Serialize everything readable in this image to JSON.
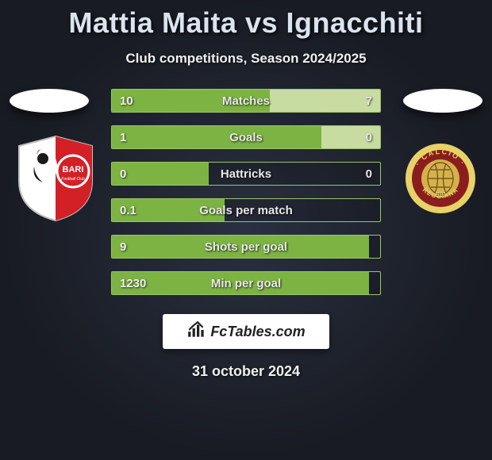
{
  "title": "Mattia Maita vs Ignacchiti",
  "subtitle": "Club competitions, Season 2024/2025",
  "date": "31 october 2024",
  "brand": "FcTables.com",
  "colors": {
    "fill_left": "#7db342",
    "fill_right": "#c8dba0",
    "border": "#9ac66a",
    "title_text": "#d9e4ef",
    "bg_inner": "#2a3040",
    "bg_outer": "#181b22"
  },
  "crest_left": {
    "name": "bari-crest",
    "badge_bg": "#ffffff",
    "accent": "#d32027",
    "text": "BARI"
  },
  "crest_right": {
    "name": "reggiana-crest",
    "ring": "#e8d268",
    "band": "#8a1e1e",
    "center": "#d4b24a"
  },
  "rows": [
    {
      "label": "Matches",
      "l": "10",
      "r": "7",
      "lw": 58.8,
      "rw": 41.2
    },
    {
      "label": "Goals",
      "l": "1",
      "r": "0",
      "lw": 78,
      "rw": 22
    },
    {
      "label": "Hattricks",
      "l": "0",
      "r": "0",
      "lw": 36,
      "rw": 0
    },
    {
      "label": "Goals per match",
      "l": "0.1",
      "r": "",
      "lw": 42,
      "rw": 0
    },
    {
      "label": "Shots per goal",
      "l": "9",
      "r": "",
      "lw": 96,
      "rw": 0
    },
    {
      "label": "Min per goal",
      "l": "1230",
      "r": "",
      "lw": 96,
      "rw": 0
    }
  ]
}
